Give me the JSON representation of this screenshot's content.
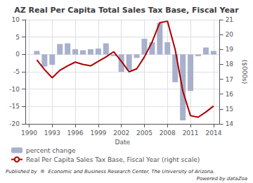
{
  "chart_data": {
    "type": "bar",
    "title": "AZ Real Per Capita Total Sales Tax Base, Fiscal Year",
    "xlabel": "Date",
    "y2label": "($000s)",
    "x": [
      1991,
      1992,
      1993,
      1994,
      1995,
      1996,
      1997,
      1998,
      1999,
      2000,
      2001,
      2002,
      2003,
      2004,
      2005,
      2006,
      2007,
      2008,
      2009,
      2010,
      2011,
      2012,
      2013,
      2014
    ],
    "series": [
      {
        "name": "percent change",
        "type": "bar",
        "color": "#a8b0cc",
        "values": [
          1.0,
          -3.5,
          -3.0,
          3.0,
          3.2,
          1.5,
          1.2,
          1.5,
          1.7,
          3.2,
          -0.5,
          -5.0,
          -4.5,
          -1.0,
          4.5,
          3.5,
          9.0,
          3.5,
          -8.0,
          -19.0,
          -10.5,
          -0.5,
          2.0,
          1.0
        ]
      },
      {
        "name": "Real Per Capita Sales Tax Base, Fiscal Year (right scale)",
        "type": "line",
        "axis": "y2",
        "color": "#aa0000",
        "values": [
          18.3,
          17.65,
          17.1,
          17.6,
          17.9,
          18.15,
          18.0,
          17.9,
          18.2,
          18.5,
          18.85,
          18.2,
          17.5,
          17.7,
          18.5,
          19.5,
          20.8,
          20.9,
          19.0,
          16.2,
          14.55,
          14.45,
          14.8,
          15.2
        ]
      }
    ],
    "xlim": [
      1989.5,
      2014.8
    ],
    "xticks": [
      1990,
      1993,
      1996,
      1999,
      2002,
      2005,
      2008,
      2011,
      2014
    ],
    "ylim": [
      -20,
      10
    ],
    "yticks": [
      -20,
      -15,
      -10,
      -5,
      0,
      5,
      10
    ],
    "y2lim": [
      14,
      21
    ],
    "y2ticks": [
      14,
      15,
      16,
      17,
      18,
      19,
      20,
      21
    ],
    "grid": true,
    "legend": "bottom",
    "annotations": [
      "Published by  ®  Economic and Business Research Center, The University of Arizona.",
      "Powered by dataZoa"
    ]
  }
}
